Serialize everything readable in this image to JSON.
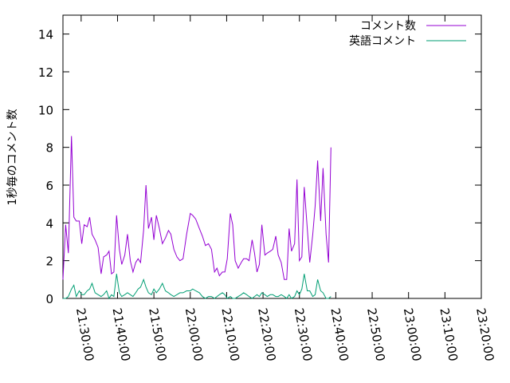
{
  "chart_data": {
    "type": "line",
    "title": "",
    "xlabel": "",
    "ylabel": "1秒毎のコメント数",
    "xlim": [
      "21:25:00",
      "23:20:00"
    ],
    "ylim": [
      0,
      15
    ],
    "y_ticks": [
      0,
      2,
      4,
      6,
      8,
      10,
      12,
      14
    ],
    "x_ticks": [
      "21:30:00",
      "21:40:00",
      "21:50:00",
      "22:00:00",
      "22:10:00",
      "22:20:00",
      "22:30:00",
      "22:40:00",
      "22:50:00",
      "23:00:00",
      "23:10:00",
      "23:20:00"
    ],
    "grid": false,
    "legend": "top-right",
    "series": [
      {
        "name": "コメント数",
        "color": "#9400d3",
        "points": [
          [
            "21:25:00",
            1.0
          ],
          [
            "21:25:45",
            3.9
          ],
          [
            "21:26:30",
            2.4
          ],
          [
            "21:27:20",
            8.6
          ],
          [
            "21:28:00",
            4.3
          ],
          [
            "21:28:40",
            4.1
          ],
          [
            "21:29:30",
            4.1
          ],
          [
            "21:30:10",
            2.9
          ],
          [
            "21:30:50",
            3.9
          ],
          [
            "21:31:40",
            3.8
          ],
          [
            "21:32:20",
            4.3
          ],
          [
            "21:33:00",
            3.4
          ],
          [
            "21:33:50",
            3.1
          ],
          [
            "21:34:40",
            2.7
          ],
          [
            "21:35:30",
            1.3
          ],
          [
            "21:36:10",
            2.2
          ],
          [
            "21:37:00",
            2.3
          ],
          [
            "21:37:40",
            2.5
          ],
          [
            "21:38:20",
            1.3
          ],
          [
            "21:39:00",
            1.4
          ],
          [
            "21:39:45",
            4.4
          ],
          [
            "21:40:30",
            2.6
          ],
          [
            "21:41:10",
            1.8
          ],
          [
            "21:42:00",
            2.3
          ],
          [
            "21:42:45",
            3.4
          ],
          [
            "21:43:30",
            2.0
          ],
          [
            "21:44:15",
            1.4
          ],
          [
            "21:45:00",
            1.9
          ],
          [
            "21:45:40",
            2.1
          ],
          [
            "21:46:20",
            1.9
          ],
          [
            "21:47:10",
            3.6
          ],
          [
            "21:47:50",
            6.0
          ],
          [
            "21:48:30",
            3.7
          ],
          [
            "21:49:20",
            4.3
          ],
          [
            "21:50:00",
            3.1
          ],
          [
            "21:50:40",
            4.4
          ],
          [
            "21:51:30",
            3.7
          ],
          [
            "21:52:20",
            2.9
          ],
          [
            "21:53:10",
            3.2
          ],
          [
            "21:54:00",
            3.6
          ],
          [
            "21:54:40",
            3.4
          ],
          [
            "21:55:30",
            2.6
          ],
          [
            "21:56:20",
            2.2
          ],
          [
            "21:57:10",
            2.0
          ],
          [
            "21:58:00",
            2.1
          ],
          [
            "21:59:00",
            3.4
          ],
          [
            "22:00:00",
            4.5
          ],
          [
            "22:00:40",
            4.4
          ],
          [
            "22:01:30",
            4.2
          ],
          [
            "22:02:30",
            3.7
          ],
          [
            "22:03:20",
            3.3
          ],
          [
            "22:04:10",
            2.8
          ],
          [
            "22:05:00",
            2.9
          ],
          [
            "22:05:50",
            2.6
          ],
          [
            "22:06:40",
            1.4
          ],
          [
            "22:07:20",
            1.6
          ],
          [
            "22:08:00",
            1.2
          ],
          [
            "22:08:50",
            1.4
          ],
          [
            "22:09:30",
            1.4
          ],
          [
            "22:10:10",
            2.1
          ],
          [
            "22:11:00",
            4.5
          ],
          [
            "22:11:40",
            3.9
          ],
          [
            "22:12:20",
            2.0
          ],
          [
            "22:13:10",
            1.6
          ],
          [
            "22:14:00",
            1.9
          ],
          [
            "22:14:40",
            2.1
          ],
          [
            "22:15:30",
            2.1
          ],
          [
            "22:16:10",
            2.0
          ],
          [
            "22:17:00",
            3.1
          ],
          [
            "22:17:40",
            2.4
          ],
          [
            "22:18:20",
            1.4
          ],
          [
            "22:19:00",
            1.8
          ],
          [
            "22:19:40",
            3.9
          ],
          [
            "22:20:30",
            2.3
          ],
          [
            "22:21:10",
            2.4
          ],
          [
            "22:22:00",
            2.5
          ],
          [
            "22:22:40",
            2.6
          ],
          [
            "22:23:30",
            3.3
          ],
          [
            "22:24:10",
            2.3
          ],
          [
            "22:25:00",
            1.9
          ],
          [
            "22:25:50",
            1.0
          ],
          [
            "22:26:30",
            1.0
          ],
          [
            "22:27:10",
            3.7
          ],
          [
            "22:27:50",
            2.5
          ],
          [
            "22:28:40",
            2.9
          ],
          [
            "22:29:20",
            6.3
          ],
          [
            "22:30:00",
            2.0
          ],
          [
            "22:30:40",
            2.2
          ],
          [
            "22:31:20",
            5.9
          ],
          [
            "22:32:10",
            3.7
          ],
          [
            "22:32:50",
            1.9
          ],
          [
            "22:33:40",
            3.4
          ],
          [
            "22:34:20",
            4.9
          ],
          [
            "22:35:00",
            7.3
          ],
          [
            "22:35:50",
            4.1
          ],
          [
            "22:36:30",
            6.9
          ],
          [
            "22:37:20",
            3.4
          ],
          [
            "22:38:00",
            1.9
          ],
          [
            "22:38:40",
            8.0
          ]
        ]
      },
      {
        "name": "英語コメント",
        "color": "#009e73",
        "points": [
          [
            "21:25:00",
            0.0
          ],
          [
            "21:25:45",
            0.0
          ],
          [
            "21:26:30",
            0.1
          ],
          [
            "21:27:20",
            0.5
          ],
          [
            "21:28:00",
            0.7
          ],
          [
            "21:28:40",
            0.1
          ],
          [
            "21:29:30",
            0.4
          ],
          [
            "21:30:10",
            0.2
          ],
          [
            "21:30:50",
            0.2
          ],
          [
            "21:31:40",
            0.4
          ],
          [
            "21:32:20",
            0.5
          ],
          [
            "21:33:00",
            0.8
          ],
          [
            "21:33:50",
            0.3
          ],
          [
            "21:34:40",
            0.2
          ],
          [
            "21:35:30",
            0.1
          ],
          [
            "21:36:10",
            0.2
          ],
          [
            "21:37:00",
            0.4
          ],
          [
            "21:37:40",
            0.0
          ],
          [
            "21:38:20",
            0.2
          ],
          [
            "21:39:00",
            0.1
          ],
          [
            "21:39:45",
            1.3
          ],
          [
            "21:40:30",
            0.3
          ],
          [
            "21:41:10",
            0.1
          ],
          [
            "21:42:00",
            0.2
          ],
          [
            "21:42:45",
            0.3
          ],
          [
            "21:43:30",
            0.2
          ],
          [
            "21:44:15",
            0.1
          ],
          [
            "21:45:00",
            0.3
          ],
          [
            "21:45:40",
            0.5
          ],
          [
            "21:46:20",
            0.6
          ],
          [
            "21:47:10",
            1.0
          ],
          [
            "21:47:50",
            0.6
          ],
          [
            "21:48:30",
            0.3
          ],
          [
            "21:49:20",
            0.2
          ],
          [
            "21:50:00",
            0.5
          ],
          [
            "21:50:40",
            0.3
          ],
          [
            "21:51:30",
            0.5
          ],
          [
            "21:52:20",
            0.8
          ],
          [
            "21:53:10",
            0.4
          ],
          [
            "21:54:00",
            0.3
          ],
          [
            "21:54:40",
            0.2
          ],
          [
            "21:55:30",
            0.1
          ],
          [
            "21:56:20",
            0.2
          ],
          [
            "21:57:10",
            0.3
          ],
          [
            "21:58:00",
            0.3
          ],
          [
            "21:59:00",
            0.4
          ],
          [
            "22:00:00",
            0.4
          ],
          [
            "22:00:40",
            0.5
          ],
          [
            "22:01:30",
            0.4
          ],
          [
            "22:02:30",
            0.3
          ],
          [
            "22:03:20",
            0.1
          ],
          [
            "22:04:10",
            0.0
          ],
          [
            "22:05:00",
            0.1
          ],
          [
            "22:05:50",
            0.1
          ],
          [
            "22:06:40",
            0.0
          ],
          [
            "22:07:20",
            0.1
          ],
          [
            "22:08:00",
            0.2
          ],
          [
            "22:08:50",
            0.3
          ],
          [
            "22:09:30",
            0.2
          ],
          [
            "22:10:10",
            0.0
          ],
          [
            "22:11:00",
            0.1
          ],
          [
            "22:11:40",
            0.0
          ],
          [
            "22:12:20",
            0.0
          ],
          [
            "22:13:10",
            0.1
          ],
          [
            "22:14:00",
            0.2
          ],
          [
            "22:14:40",
            0.3
          ],
          [
            "22:15:30",
            0.2
          ],
          [
            "22:16:10",
            0.1
          ],
          [
            "22:17:00",
            0.0
          ],
          [
            "22:17:40",
            0.1
          ],
          [
            "22:18:20",
            0.2
          ],
          [
            "22:19:00",
            0.1
          ],
          [
            "22:19:40",
            0.3
          ],
          [
            "22:20:30",
            0.2
          ],
          [
            "22:21:10",
            0.1
          ],
          [
            "22:22:00",
            0.2
          ],
          [
            "22:22:40",
            0.2
          ],
          [
            "22:23:30",
            0.1
          ],
          [
            "22:24:10",
            0.1
          ],
          [
            "22:25:00",
            0.2
          ],
          [
            "22:25:50",
            0.1
          ],
          [
            "22:26:30",
            0.0
          ],
          [
            "22:27:10",
            0.2
          ],
          [
            "22:27:50",
            0.0
          ],
          [
            "22:28:40",
            0.1
          ],
          [
            "22:29:20",
            0.4
          ],
          [
            "22:30:00",
            0.2
          ],
          [
            "22:30:40",
            0.5
          ],
          [
            "22:31:20",
            1.3
          ],
          [
            "22:32:10",
            0.4
          ],
          [
            "22:32:50",
            0.4
          ],
          [
            "22:33:40",
            0.1
          ],
          [
            "22:34:20",
            0.2
          ],
          [
            "22:35:00",
            1.0
          ],
          [
            "22:35:50",
            0.4
          ],
          [
            "22:36:30",
            0.3
          ],
          [
            "22:37:20",
            0.0
          ],
          [
            "22:38:00",
            0.0
          ],
          [
            "22:38:40",
            0.1
          ]
        ]
      }
    ]
  }
}
